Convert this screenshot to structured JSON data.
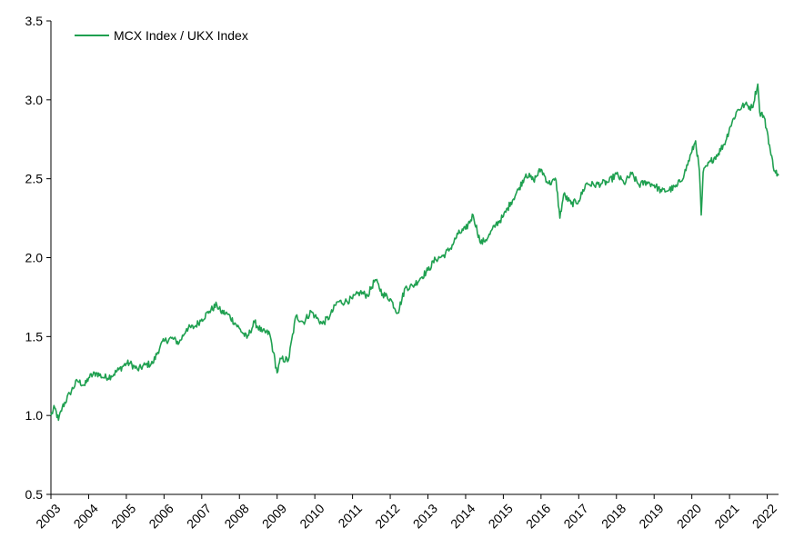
{
  "chart_data": {
    "type": "line",
    "title": "",
    "xlabel": "",
    "ylabel": "",
    "ylim": [
      0.5,
      3.5
    ],
    "xlim": [
      2003,
      2022.3
    ],
    "y_ticks": [
      0.5,
      1.0,
      1.5,
      2.0,
      2.5,
      3.0,
      3.5
    ],
    "y_tick_labels": [
      "0.5",
      "1.0",
      "1.5",
      "2.0",
      "2.5",
      "3.0",
      "3.5"
    ],
    "x_ticks": [
      2003,
      2004,
      2005,
      2006,
      2007,
      2008,
      2009,
      2010,
      2011,
      2012,
      2013,
      2014,
      2015,
      2016,
      2017,
      2018,
      2019,
      2020,
      2021,
      2022
    ],
    "x_tick_labels": [
      "2003",
      "2004",
      "2005",
      "2006",
      "2007",
      "2008",
      "2009",
      "2010",
      "2011",
      "2012",
      "2013",
      "2014",
      "2015",
      "2016",
      "2017",
      "2018",
      "2019",
      "2020",
      "2021",
      "2022"
    ],
    "grid": false,
    "legend_position": "top-left",
    "series": [
      {
        "name": "MCX Index / UKX Index",
        "color": "#1fa050",
        "x": [
          2003.0,
          2003.1,
          2003.2,
          2003.3,
          2003.5,
          2003.7,
          2003.9,
          2004.0,
          2004.2,
          2004.4,
          2004.6,
          2004.8,
          2005.0,
          2005.1,
          2005.3,
          2005.5,
          2005.7,
          2005.9,
          2006.0,
          2006.2,
          2006.4,
          2006.6,
          2006.8,
          2007.0,
          2007.2,
          2007.4,
          2007.5,
          2007.7,
          2007.9,
          2008.0,
          2008.2,
          2008.4,
          2008.6,
          2008.8,
          2008.9,
          2009.0,
          2009.1,
          2009.3,
          2009.5,
          2009.7,
          2009.9,
          2010.0,
          2010.2,
          2010.4,
          2010.6,
          2010.8,
          2011.0,
          2011.2,
          2011.4,
          2011.6,
          2011.8,
          2012.0,
          2012.2,
          2012.4,
          2012.6,
          2012.8,
          2013.0,
          2013.2,
          2013.4,
          2013.6,
          2013.8,
          2014.0,
          2014.2,
          2014.4,
          2014.6,
          2014.8,
          2015.0,
          2015.2,
          2015.4,
          2015.6,
          2015.8,
          2016.0,
          2016.2,
          2016.4,
          2016.5,
          2016.6,
          2016.8,
          2017.0,
          2017.2,
          2017.4,
          2017.6,
          2017.8,
          2018.0,
          2018.2,
          2018.4,
          2018.6,
          2018.8,
          2019.0,
          2019.2,
          2019.4,
          2019.6,
          2019.8,
          2020.0,
          2020.1,
          2020.2,
          2020.25,
          2020.3,
          2020.5,
          2020.7,
          2020.9,
          2021.0,
          2021.2,
          2021.4,
          2021.6,
          2021.75,
          2021.8,
          2021.9,
          2022.0,
          2022.1,
          2022.2,
          2022.3
        ],
        "y": [
          1.0,
          1.05,
          0.97,
          1.05,
          1.14,
          1.22,
          1.19,
          1.24,
          1.27,
          1.24,
          1.25,
          1.29,
          1.33,
          1.33,
          1.29,
          1.32,
          1.33,
          1.44,
          1.47,
          1.49,
          1.46,
          1.55,
          1.56,
          1.61,
          1.66,
          1.7,
          1.66,
          1.64,
          1.58,
          1.55,
          1.49,
          1.59,
          1.53,
          1.52,
          1.4,
          1.27,
          1.36,
          1.35,
          1.63,
          1.59,
          1.66,
          1.63,
          1.58,
          1.63,
          1.72,
          1.72,
          1.74,
          1.78,
          1.76,
          1.86,
          1.77,
          1.74,
          1.65,
          1.81,
          1.82,
          1.87,
          1.92,
          1.99,
          2.01,
          2.06,
          2.15,
          2.18,
          2.27,
          2.09,
          2.13,
          2.21,
          2.26,
          2.35,
          2.43,
          2.53,
          2.49,
          2.56,
          2.47,
          2.49,
          2.25,
          2.4,
          2.34,
          2.36,
          2.47,
          2.46,
          2.47,
          2.48,
          2.53,
          2.47,
          2.53,
          2.46,
          2.48,
          2.46,
          2.42,
          2.43,
          2.45,
          2.53,
          2.67,
          2.74,
          2.55,
          2.27,
          2.54,
          2.61,
          2.66,
          2.74,
          2.82,
          2.93,
          2.97,
          2.95,
          3.1,
          2.92,
          2.9,
          2.8,
          2.65,
          2.55,
          2.52
        ]
      }
    ]
  }
}
